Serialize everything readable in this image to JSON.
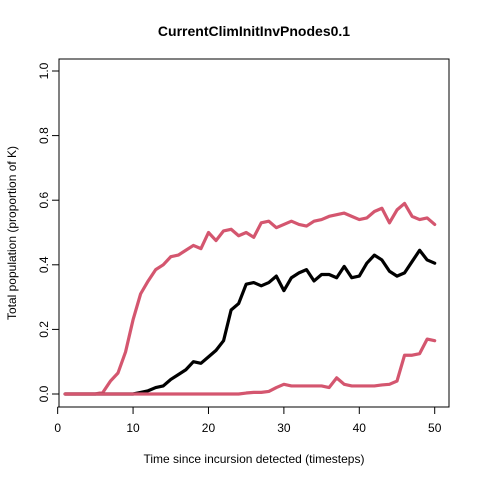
{
  "chart_data": {
    "type": "line",
    "title": "CurrentClimInitInvPnodes0.1",
    "xlabel": "Time since incursion detected (timesteps)",
    "ylabel": "Total population (proportion of K)",
    "xlim": [
      1,
      50
    ],
    "ylim": [
      0,
      1
    ],
    "xticks": [
      0,
      10,
      20,
      30,
      40,
      50
    ],
    "yticks": [
      0.0,
      0.2,
      0.4,
      0.6,
      0.8,
      1.0
    ],
    "ytick_labels": [
      "0.0",
      "0.2",
      "0.4",
      "0.6",
      "0.8",
      "1.0"
    ],
    "grid": false,
    "legend": "none",
    "x": [
      1,
      2,
      3,
      4,
      5,
      6,
      7,
      8,
      9,
      10,
      11,
      12,
      13,
      14,
      15,
      16,
      17,
      18,
      19,
      20,
      21,
      22,
      23,
      24,
      25,
      26,
      27,
      28,
      29,
      30,
      31,
      32,
      33,
      34,
      35,
      36,
      37,
      38,
      39,
      40,
      41,
      42,
      43,
      44,
      45,
      46,
      47,
      48,
      49,
      50
    ],
    "series": [
      {
        "color": "#d4566f",
        "values": [
          0,
          0,
          0,
          0,
          0,
          0.005,
          0.04,
          0.065,
          0.13,
          0.23,
          0.31,
          0.35,
          0.385,
          0.4,
          0.425,
          0.43,
          0.445,
          0.46,
          0.45,
          0.5,
          0.475,
          0.505,
          0.51,
          0.49,
          0.5,
          0.485,
          0.53,
          0.535,
          0.515,
          0.525,
          0.535,
          0.525,
          0.52,
          0.535,
          0.54,
          0.55,
          0.555,
          0.56,
          0.55,
          0.54,
          0.545,
          0.565,
          0.575,
          0.53,
          0.57,
          0.59,
          0.55,
          0.54,
          0.545,
          0.525
        ]
      },
      {
        "color": "#000000",
        "values": [
          0,
          0,
          0,
          0,
          0,
          0,
          0,
          0,
          0,
          0,
          0.005,
          0.01,
          0.02,
          0.025,
          0.045,
          0.06,
          0.075,
          0.1,
          0.095,
          0.115,
          0.135,
          0.165,
          0.26,
          0.28,
          0.34,
          0.345,
          0.335,
          0.345,
          0.365,
          0.32,
          0.36,
          0.375,
          0.385,
          0.35,
          0.37,
          0.37,
          0.36,
          0.395,
          0.36,
          0.365,
          0.405,
          0.43,
          0.415,
          0.38,
          0.365,
          0.375,
          0.41,
          0.445,
          0.415,
          0.405
        ]
      },
      {
        "color": "#d4566f",
        "values": [
          0,
          0,
          0,
          0,
          0,
          0,
          0,
          0,
          0,
          0,
          0,
          0,
          0,
          0,
          0,
          0,
          0,
          0,
          0,
          0,
          0,
          0,
          0,
          0,
          0.003,
          0.005,
          0.005,
          0.008,
          0.02,
          0.03,
          0.025,
          0.025,
          0.025,
          0.025,
          0.025,
          0.02,
          0.05,
          0.03,
          0.025,
          0.025,
          0.025,
          0.025,
          0.028,
          0.03,
          0.04,
          0.12,
          0.12,
          0.125,
          0.17,
          0.165
        ]
      }
    ]
  }
}
